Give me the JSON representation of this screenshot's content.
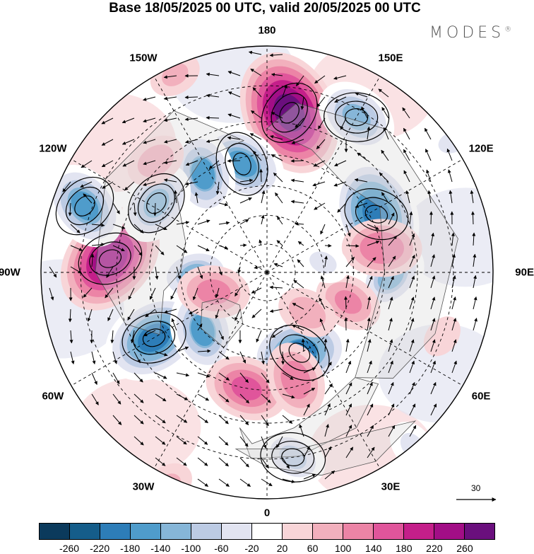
{
  "title": "Base 18/05/2025 00 UTC, valid 20/05/2025 00 UTC",
  "brand": {
    "name": "MODES",
    "mark": "®"
  },
  "longitude_labels": [
    "180",
    "150E",
    "120E",
    "90E",
    "60E",
    "30E",
    "0",
    "30W",
    "60W",
    "90W",
    "120W",
    "150W"
  ],
  "vector_scale": {
    "label": "30"
  },
  "colorbar": {
    "colors": [
      "#0b3a5c",
      "#155d8a",
      "#2d7db8",
      "#4f9ccb",
      "#86b6d8",
      "#bccbe4",
      "#e2e4f1",
      "#ffffff",
      "#f8d5d8",
      "#f2b0bd",
      "#ec84a6",
      "#e0559b",
      "#c41f8a",
      "#a20e86",
      "#6a0f7d"
    ],
    "ticks": [
      "-260",
      "-220",
      "-180",
      "-140",
      "-100",
      "-60",
      "-20",
      "20",
      "60",
      "100",
      "140",
      "180",
      "220",
      "260"
    ]
  },
  "anomaly_fields": [
    {
      "lon": 172,
      "colat": 53,
      "value": 260
    },
    {
      "lon": 118,
      "colat": 42,
      "value": -220
    },
    {
      "lon": -95,
      "colat": 52,
      "value": 230
    },
    {
      "lon": 150,
      "colat": 58,
      "value": -140
    },
    {
      "lon": -167,
      "colat": 38,
      "value": -160
    },
    {
      "lon": -147,
      "colat": 40,
      "value": -150
    },
    {
      "lon": -122,
      "colat": 44,
      "value": -140
    },
    {
      "lon": -110,
      "colat": 62,
      "value": -160
    },
    {
      "lon": -88,
      "colat": 25,
      "value": -120
    },
    {
      "lon": -60,
      "colat": 44,
      "value": -200
    },
    {
      "lon": -48,
      "colat": 30,
      "value": -150
    },
    {
      "lon": 22,
      "colat": 30,
      "value": -190
    },
    {
      "lon": 8,
      "colat": 60,
      "value": -100
    },
    {
      "lon": 88,
      "colat": 42,
      "value": -120
    },
    {
      "lon": 70,
      "colat": 30,
      "value": 100
    },
    {
      "lon": 45,
      "colat": 20,
      "value": 80
    },
    {
      "lon": 102,
      "colat": 40,
      "value": 130
    },
    {
      "lon": -10,
      "colat": 40,
      "value": 140
    },
    {
      "lon": 15,
      "colat": 38,
      "value": 120
    },
    {
      "lon": -70,
      "colat": 20,
      "value": 110
    },
    {
      "lon": -135,
      "colat": 52,
      "value": 80
    },
    {
      "lon": -155,
      "colat": 68,
      "value": 60
    },
    {
      "lon": 155,
      "colat": 76,
      "value": 40
    },
    {
      "lon": -25,
      "colat": 72,
      "value": 60
    },
    {
      "lon": 40,
      "colat": 70,
      "value": -60
    },
    {
      "lon": 125,
      "colat": 70,
      "value": -60
    },
    {
      "lon": 70,
      "colat": 60,
      "value": 40
    },
    {
      "lon": -100,
      "colat": 78,
      "value": -40
    },
    {
      "lon": 100,
      "colat": 20,
      "value": -60
    }
  ],
  "vortex_contours": [
    {
      "lon": 172,
      "colat": 53,
      "sense": "cw"
    },
    {
      "lon": 118,
      "colat": 42,
      "sense": "ccw"
    },
    {
      "lon": -95,
      "colat": 52,
      "sense": "cw"
    },
    {
      "lon": -167,
      "colat": 38,
      "sense": "ccw"
    },
    {
      "lon": -122,
      "colat": 44,
      "sense": "ccw"
    },
    {
      "lon": -110,
      "colat": 62,
      "sense": "ccw"
    },
    {
      "lon": -60,
      "colat": 44,
      "sense": "ccw"
    },
    {
      "lon": 22,
      "colat": 30,
      "sense": "ccw"
    },
    {
      "lon": 8,
      "colat": 60,
      "sense": "ccw"
    },
    {
      "lon": 150,
      "colat": 58,
      "sense": "ccw"
    }
  ]
}
